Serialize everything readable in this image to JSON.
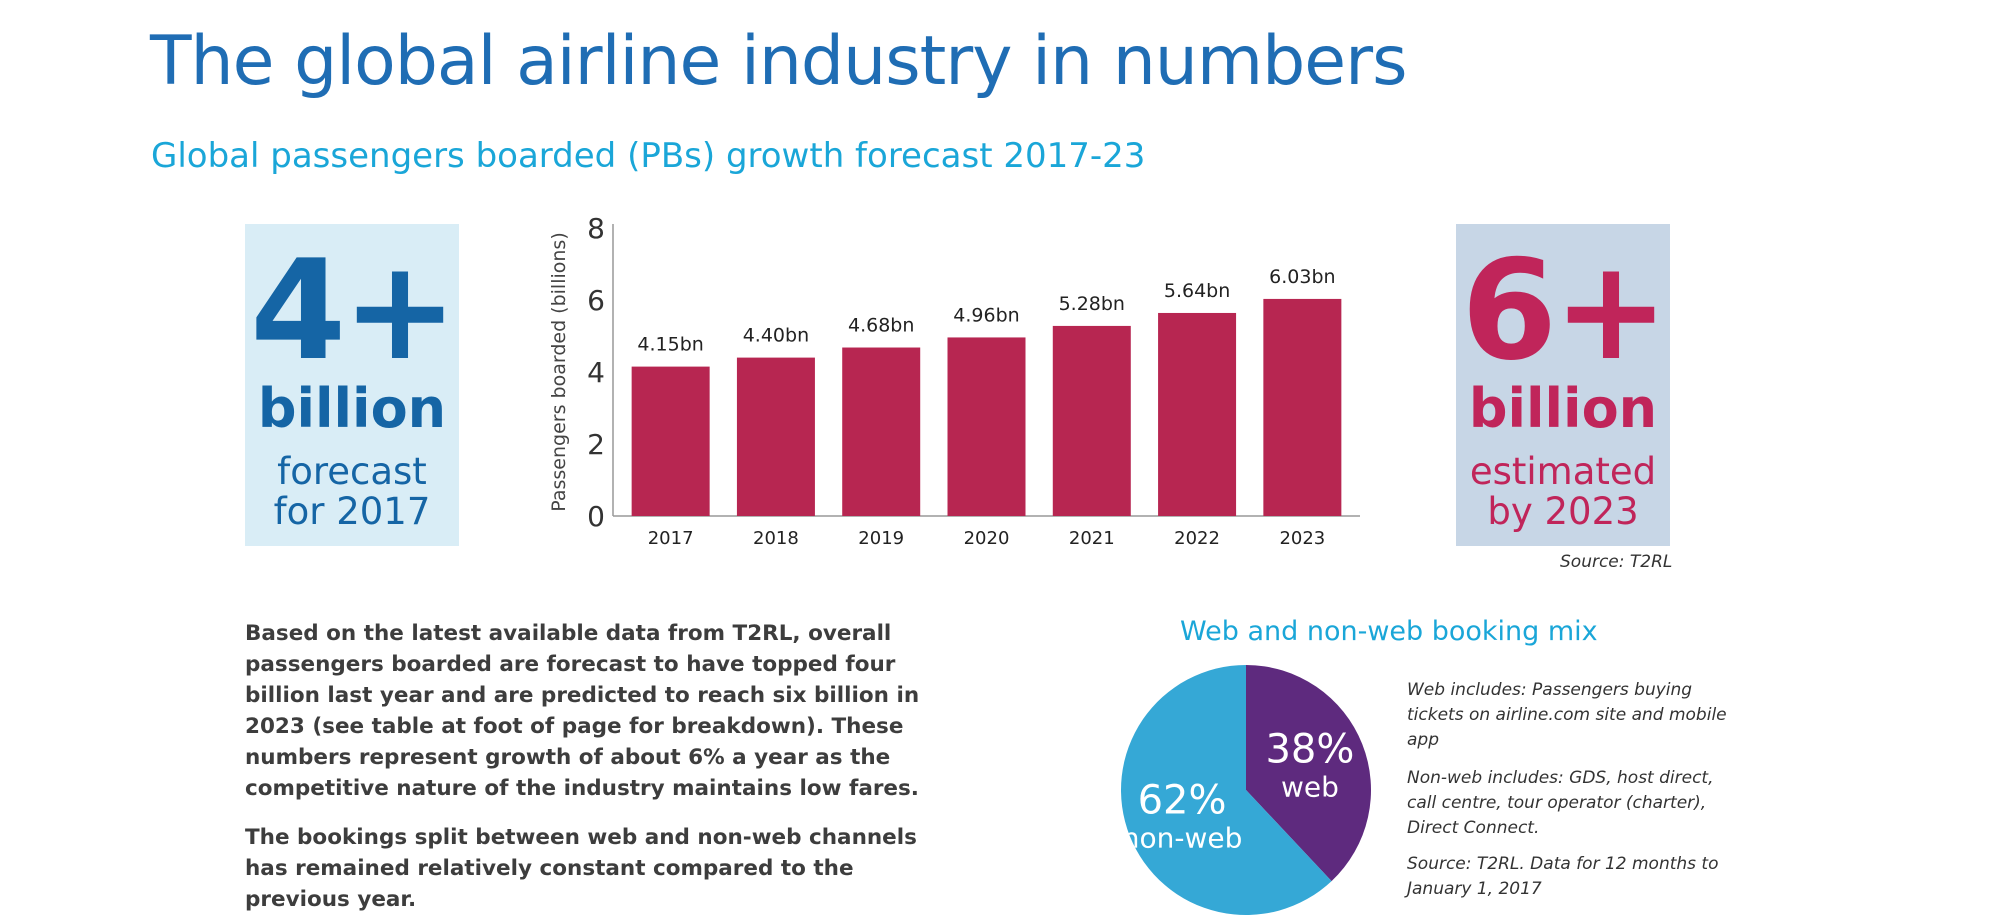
{
  "page": {
    "title": "The global airline industry in numbers",
    "subtitle": "Global passengers boarded (PBs) growth forecast 2017-23"
  },
  "stat_left": {
    "number": "4+",
    "unit": "billion",
    "line1": "forecast",
    "line2": "for 2017",
    "color": "#1565a5",
    "background": "#d9edf6"
  },
  "stat_right": {
    "number": "6+",
    "unit": "billion",
    "line1": "estimated",
    "line2": "by 2023",
    "color": "#c0255a",
    "background": "#c7d6e6"
  },
  "chart_source": "Source: T2RL",
  "body": {
    "para1": "Based on the latest available data from T2RL, overall passengers boarded are forecast to have topped four billion last year and are predicted to reach six billion in 2023 (see table at foot of page for breakdown). These numbers represent growth of about 6% a year as the competitive nature of the industry maintains low fares.",
    "para2": "The bookings split between web and non-web channels has remained relatively constant compared to the previous year."
  },
  "pie_notes": {
    "web": "Web includes: Passengers buying tickets on airline.com site and mobile app",
    "nonweb": "Non-web includes: GDS, host direct, call centre, tour operator (charter), Direct Connect.",
    "source": "Source: T2RL. Data for 12 months to January 1, 2017"
  },
  "chart_data": [
    {
      "type": "bar",
      "title": "",
      "categories": [
        "2017",
        "2018",
        "2019",
        "2020",
        "2021",
        "2022",
        "2023"
      ],
      "values": [
        4.15,
        4.4,
        4.68,
        4.96,
        5.28,
        5.64,
        6.03
      ],
      "data_labels": [
        "4.15bn",
        "4.40bn",
        "4.68bn",
        "4.96bn",
        "5.28bn",
        "5.64bn",
        "6.03bn"
      ],
      "xlabel": "",
      "ylabel": "Passengers boarded (billions)",
      "ylim": [
        0,
        8
      ],
      "yticks": [
        0,
        2,
        4,
        6,
        8
      ],
      "bar_color": "#b72651",
      "grid": false,
      "legend": "none"
    },
    {
      "type": "pie",
      "title": "Web and non-web booking mix",
      "slices": [
        {
          "name": "web",
          "value": 38,
          "label": "38%",
          "color": "#5e2a7e"
        },
        {
          "name": "non-web",
          "value": 62,
          "label": "62%",
          "color": "#35a8d6"
        }
      ],
      "legend": "none"
    }
  ]
}
